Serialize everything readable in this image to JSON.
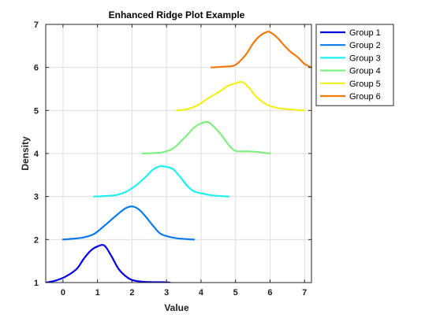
{
  "chart_data": {
    "type": "line",
    "title": "Enhanced Ridge Plot Example",
    "xlabel": "Value",
    "ylabel": "Density",
    "xlim": [
      -0.5,
      7.2
    ],
    "ylim": [
      1,
      7
    ],
    "xticks": [
      0,
      1,
      2,
      3,
      4,
      5,
      6,
      7
    ],
    "yticks": [
      1,
      2,
      3,
      4,
      5,
      6,
      7
    ],
    "grid": true,
    "legend_position": "outside-top-right",
    "series": [
      {
        "name": "Group 1",
        "color": "#0000e6",
        "x": [
          -0.5,
          -0.2,
          0.1,
          0.4,
          0.6,
          0.8,
          1.0,
          1.2,
          1.4,
          1.6,
          1.8,
          2.0,
          2.3,
          2.6,
          2.9,
          3.1
        ],
        "y": [
          1.0,
          1.05,
          1.15,
          1.32,
          1.55,
          1.74,
          1.84,
          1.86,
          1.62,
          1.33,
          1.16,
          1.06,
          1.02,
          1.01,
          1.01,
          1.0
        ]
      },
      {
        "name": "Group 2",
        "color": "#0a7af0",
        "x": [
          0.0,
          0.3,
          0.6,
          0.9,
          1.2,
          1.5,
          1.8,
          2.0,
          2.2,
          2.4,
          2.6,
          2.8,
          3.0,
          3.3,
          3.6,
          3.8
        ],
        "y": [
          2.0,
          2.02,
          2.05,
          2.13,
          2.32,
          2.53,
          2.72,
          2.77,
          2.7,
          2.53,
          2.33,
          2.15,
          2.08,
          2.03,
          2.01,
          2.0
        ]
      },
      {
        "name": "Group 3",
        "color": "#1ef0f0",
        "x": [
          0.9,
          1.2,
          1.5,
          1.8,
          2.1,
          2.4,
          2.6,
          2.8,
          3.0,
          3.2,
          3.4,
          3.6,
          3.8,
          4.1,
          4.4,
          4.8
        ],
        "y": [
          3.0,
          3.01,
          3.03,
          3.1,
          3.25,
          3.46,
          3.62,
          3.7,
          3.69,
          3.63,
          3.45,
          3.25,
          3.12,
          3.06,
          3.02,
          3.0
        ]
      },
      {
        "name": "Group 4",
        "color": "#7ff07f",
        "x": [
          2.3,
          2.6,
          2.9,
          3.2,
          3.5,
          3.8,
          4.0,
          4.2,
          4.4,
          4.6,
          4.8,
          5.0,
          5.3,
          5.6,
          5.8,
          6.0
        ],
        "y": [
          4.0,
          4.01,
          4.03,
          4.12,
          4.35,
          4.6,
          4.7,
          4.73,
          4.6,
          4.42,
          4.2,
          4.06,
          4.05,
          4.04,
          4.02,
          4.0
        ]
      },
      {
        "name": "Group 5",
        "color": "#f0f01e",
        "x": [
          3.3,
          3.6,
          3.9,
          4.2,
          4.5,
          4.8,
          5.0,
          5.2,
          5.4,
          5.6,
          5.9,
          6.2,
          6.5,
          6.8,
          7.0
        ],
        "y": [
          5.0,
          5.03,
          5.12,
          5.28,
          5.42,
          5.58,
          5.63,
          5.66,
          5.52,
          5.32,
          5.14,
          5.06,
          5.03,
          5.01,
          5.0
        ]
      },
      {
        "name": "Group 6",
        "color": "#f07a0a",
        "x": [
          4.3,
          4.7,
          5.0,
          5.3,
          5.5,
          5.7,
          5.9,
          6.0,
          6.2,
          6.4,
          6.6,
          6.8,
          7.0,
          7.2
        ],
        "y": [
          6.0,
          6.02,
          6.06,
          6.3,
          6.55,
          6.73,
          6.82,
          6.82,
          6.7,
          6.52,
          6.36,
          6.24,
          6.08,
          6.0
        ]
      }
    ]
  }
}
